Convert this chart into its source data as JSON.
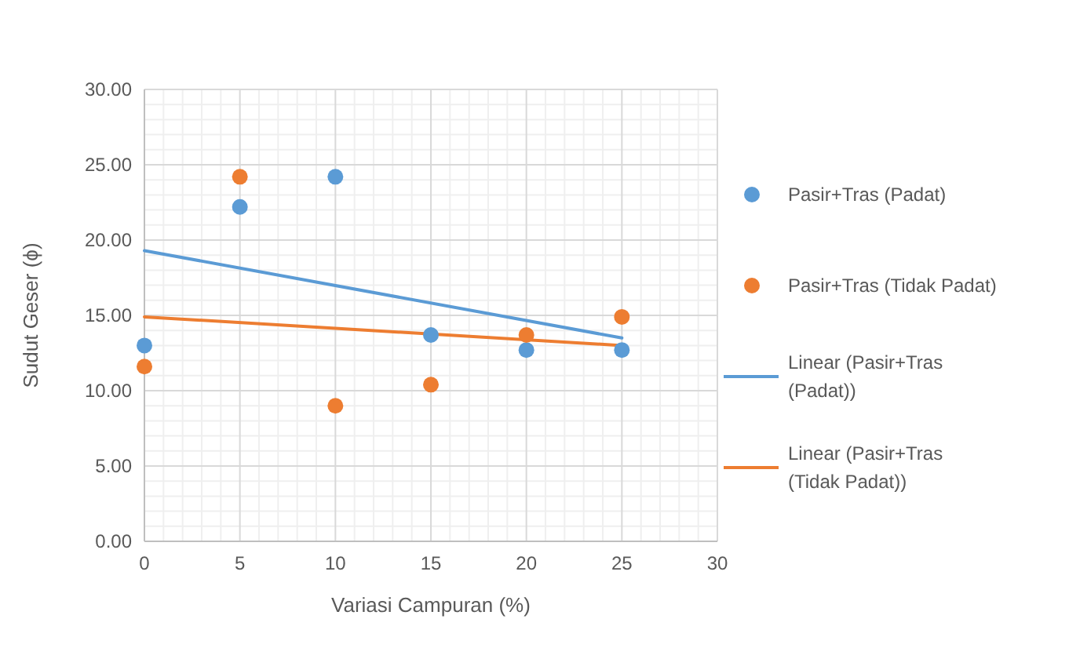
{
  "chart_data": {
    "type": "scatter",
    "xlabel": "Variasi Campuran (%)",
    "ylabel": "Sudut Geser (ϕ)",
    "xlim": [
      0,
      30
    ],
    "xticks": [
      0,
      5,
      10,
      15,
      20,
      25,
      30
    ],
    "ylim": [
      0,
      30
    ],
    "yticks": [
      {
        "value": 0,
        "label": "0.00"
      },
      {
        "value": 5,
        "label": "5.00"
      },
      {
        "value": 10,
        "label": "10.00"
      },
      {
        "value": 15,
        "label": "15.00"
      },
      {
        "value": 20,
        "label": "20.00"
      },
      {
        "value": 25,
        "label": "25.00"
      },
      {
        "value": 30,
        "label": "30.00"
      }
    ],
    "grid": true,
    "legend": "right",
    "series": [
      {
        "name": "Pasir+Tras (Padat)",
        "color": "#5b9bd5",
        "marker": "circle",
        "x": [
          0,
          5,
          10,
          15,
          20,
          25
        ],
        "values": [
          13.0,
          22.2,
          24.2,
          13.7,
          12.7,
          12.7
        ]
      },
      {
        "name": "Pasir+Tras (Tidak Padat)",
        "color": "#ed7d31",
        "marker": "circle",
        "x": [
          0,
          5,
          10,
          15,
          20,
          25
        ],
        "values": [
          11.6,
          24.2,
          9.0,
          10.4,
          13.7,
          14.9
        ]
      },
      {
        "name": "Linear (Pasir+Tras (Padat))",
        "type": "line",
        "marker": "none",
        "color": "#5b9bd5",
        "x": [
          0,
          25
        ],
        "values": [
          19.3,
          13.5
        ]
      },
      {
        "name": "Linear (Pasir+Tras (Tidak Padat))",
        "type": "line",
        "marker": "none",
        "color": "#ed7d31",
        "x": [
          0,
          25
        ],
        "values": [
          14.9,
          13.0
        ]
      }
    ]
  }
}
